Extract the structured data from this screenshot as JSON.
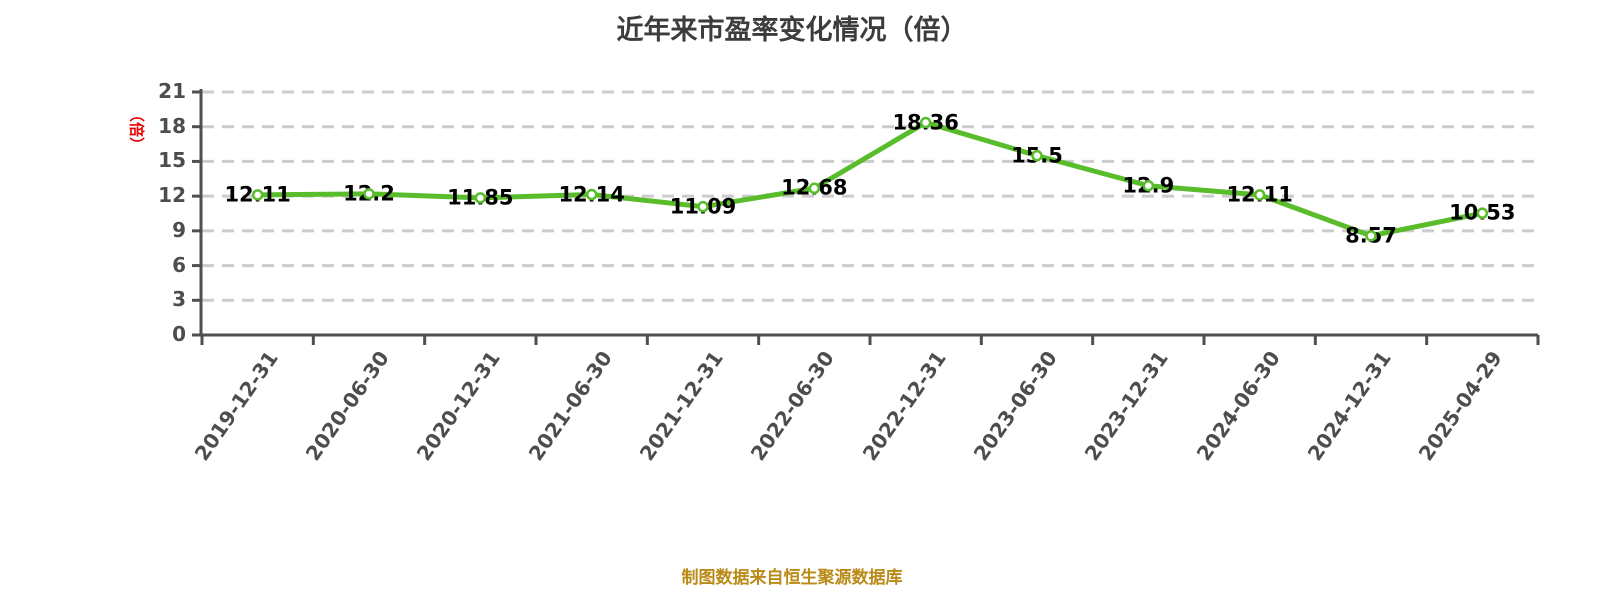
{
  "chart_data": {
    "type": "line",
    "title": "近年来市盈率变化情况（倍）",
    "y_axis_unit_label": "（倍）",
    "source_note": "制图数据来自恒生聚源数据库",
    "categories": [
      "2019-12-31",
      "2020-06-30",
      "2020-12-31",
      "2021-06-30",
      "2021-12-31",
      "2022-06-30",
      "2022-12-31",
      "2023-06-30",
      "2023-12-31",
      "2024-06-30",
      "2024-12-31",
      "2025-04-29"
    ],
    "values": [
      12.11,
      12.2,
      11.85,
      12.14,
      11.09,
      12.68,
      18.36,
      15.5,
      12.9,
      12.11,
      8.57,
      10.53
    ],
    "value_labels": [
      "12.11",
      "12.2",
      "11.85",
      "12.14",
      "11.09",
      "12.68",
      "18.36",
      "15.5",
      "12.9",
      "12.11",
      "8.57",
      "10.53"
    ],
    "xlabel": "",
    "ylabel": "（倍）",
    "ylim": [
      0,
      21
    ],
    "y_ticks": [
      0,
      3,
      6,
      9,
      12,
      15,
      18,
      21
    ],
    "grid": "horizontal-dashed",
    "legend": "none",
    "marker": "circle-white-fill-green-ring",
    "colors": {
      "line": "#58bc2b",
      "marker_fill": "#ffffff",
      "value_label": "#000000",
      "axis": "#4f4f4f",
      "tick_label": "#4d4d4d",
      "gridline": "#cccccc",
      "title": "#3c3c3c",
      "y_unit_label": "#e60000",
      "source_note": "#ba8a17"
    }
  }
}
